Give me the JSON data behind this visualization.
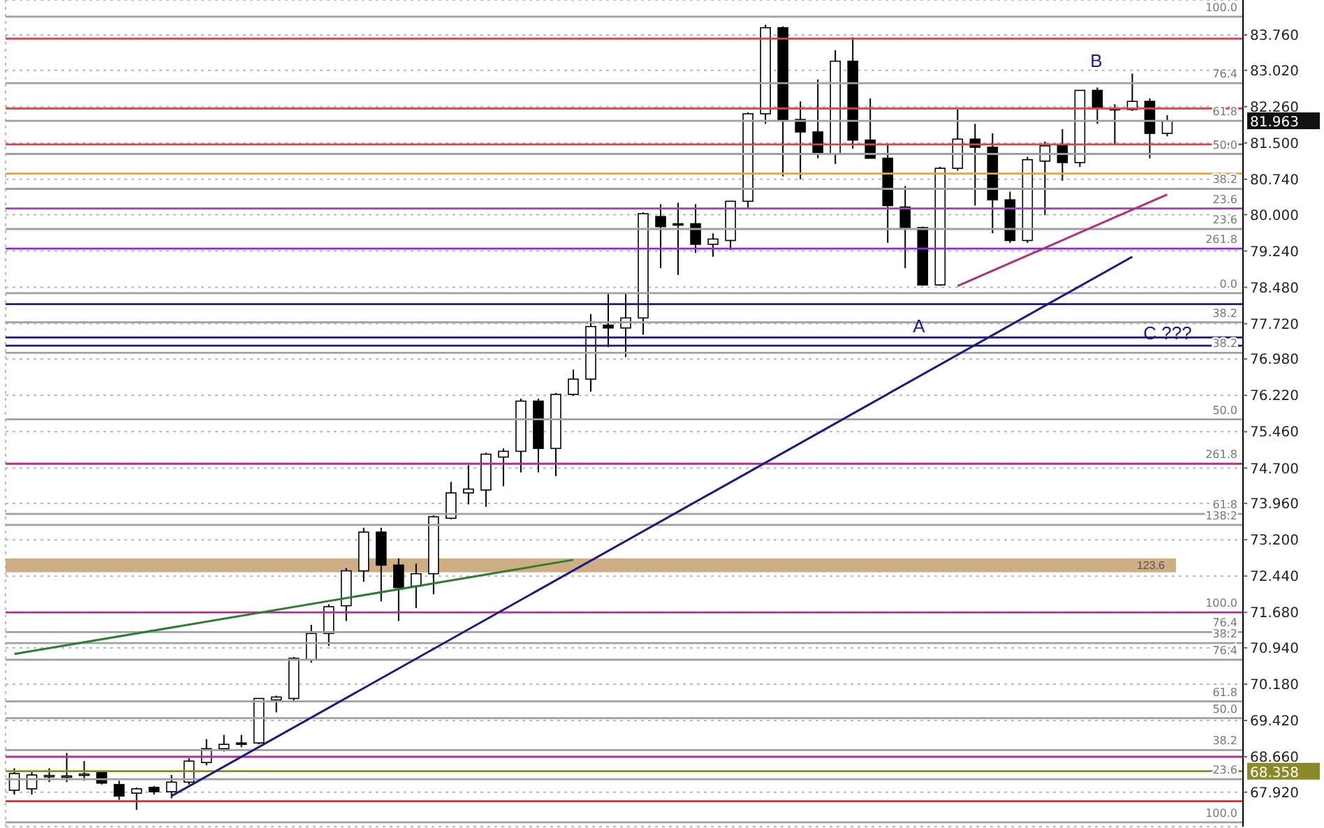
{
  "chart_data": {
    "type": "candlestick",
    "color": "#000000",
    "grid": true,
    "tick_labels": "y",
    "categories": [
      null,
      null,
      null,
      null,
      null,
      null,
      null,
      null,
      null,
      null,
      null,
      null,
      null,
      null,
      null,
      null,
      null,
      null,
      null,
      null,
      null,
      null,
      null,
      null,
      null,
      null,
      null,
      null,
      null,
      null,
      null,
      null,
      null,
      null,
      null,
      null,
      null,
      null,
      null,
      null,
      null,
      null,
      null,
      null,
      null,
      null,
      null,
      null,
      null,
      null,
      null,
      null,
      null,
      null,
      null,
      null,
      null,
      null,
      null,
      null,
      null,
      null,
      null,
      null,
      null,
      null,
      null
    ],
    "ohlc": [
      [
        67.96,
        68.42,
        67.87,
        68.31
      ],
      [
        67.99,
        68.37,
        67.87,
        68.28
      ],
      [
        68.25,
        68.42,
        68.13,
        68.27
      ],
      [
        68.25,
        68.74,
        68.13,
        68.26
      ],
      [
        68.28,
        68.57,
        68.16,
        68.3
      ],
      [
        68.34,
        68.37,
        68.08,
        68.11
      ],
      [
        68.08,
        68.16,
        67.76,
        67.84
      ],
      [
        67.9,
        68.02,
        67.55,
        67.99
      ],
      [
        68.02,
        68.05,
        67.87,
        67.93
      ],
      [
        67.93,
        68.28,
        67.79,
        68.13
      ],
      [
        68.13,
        68.63,
        68.08,
        68.57
      ],
      [
        68.54,
        69.03,
        68.48,
        68.83
      ],
      [
        68.83,
        69.12,
        68.77,
        68.92
      ],
      [
        68.95,
        69.12,
        68.86,
        68.93
      ],
      [
        68.95,
        69.88,
        68.92,
        69.88
      ],
      [
        69.85,
        69.94,
        69.59,
        69.91
      ],
      [
        69.88,
        70.75,
        69.82,
        70.72
      ],
      [
        70.69,
        71.42,
        70.63,
        71.24
      ],
      [
        71.24,
        71.85,
        70.98,
        71.8
      ],
      [
        71.82,
        72.61,
        71.5,
        72.55
      ],
      [
        72.55,
        73.45,
        72.32,
        73.36
      ],
      [
        73.36,
        73.45,
        71.91,
        72.67
      ],
      [
        72.67,
        72.81,
        71.5,
        72.2
      ],
      [
        72.23,
        72.7,
        71.77,
        72.49
      ],
      [
        72.49,
        73.71,
        72.06,
        73.68
      ],
      [
        73.65,
        74.41,
        73.63,
        74.18
      ],
      [
        74.18,
        74.76,
        73.94,
        74.26
      ],
      [
        74.24,
        75.02,
        73.89,
        74.99
      ],
      [
        74.93,
        75.11,
        74.32,
        75.05
      ],
      [
        75.05,
        76.15,
        74.61,
        76.1
      ],
      [
        76.1,
        76.15,
        74.61,
        75.11
      ],
      [
        75.11,
        76.27,
        74.53,
        76.24
      ],
      [
        76.24,
        76.76,
        76.21,
        76.56
      ],
      [
        76.56,
        77.92,
        76.3,
        77.66
      ],
      [
        77.69,
        78.36,
        77.23,
        77.63
      ],
      [
        77.63,
        78.36,
        77.02,
        77.84
      ],
      [
        77.84,
        80.05,
        77.49,
        80.02
      ],
      [
        79.96,
        80.22,
        78.88,
        79.75
      ],
      [
        79.81,
        80.25,
        78.74,
        79.8
      ],
      [
        79.81,
        80.22,
        79.2,
        79.38
      ],
      [
        79.38,
        79.61,
        79.12,
        79.49
      ],
      [
        79.46,
        80.28,
        79.26,
        80.28
      ],
      [
        80.28,
        82.14,
        80.13,
        82.11
      ],
      [
        82.11,
        83.97,
        81.9,
        83.91
      ],
      [
        83.91,
        83.94,
        80.8,
        81.96
      ],
      [
        81.99,
        82.37,
        80.74,
        81.73
      ],
      [
        81.73,
        82.83,
        81.18,
        81.27
      ],
      [
        81.27,
        83.44,
        81.06,
        83.21
      ],
      [
        83.21,
        83.71,
        81.38,
        81.56
      ],
      [
        81.56,
        82.43,
        81.18,
        81.18
      ],
      [
        81.18,
        81.47,
        79.41,
        80.19
      ],
      [
        80.16,
        80.6,
        78.88,
        79.73
      ],
      [
        79.73,
        79.75,
        78.51,
        78.53
      ],
      [
        78.53,
        81.0,
        78.51,
        80.97
      ],
      [
        80.97,
        82.2,
        80.92,
        81.58
      ],
      [
        81.58,
        81.9,
        80.19,
        81.41
      ],
      [
        81.41,
        81.7,
        79.61,
        80.31
      ],
      [
        80.31,
        80.48,
        79.41,
        79.46
      ],
      [
        79.46,
        81.21,
        79.41,
        81.15
      ],
      [
        81.12,
        81.53,
        79.99,
        81.44
      ],
      [
        81.47,
        81.79,
        80.71,
        81.09
      ],
      [
        81.09,
        82.6,
        81.0,
        82.6
      ],
      [
        82.6,
        82.66,
        81.9,
        82.22
      ],
      [
        82.22,
        82.31,
        81.47,
        82.21
      ],
      [
        82.2,
        82.95,
        82.17,
        82.37
      ],
      [
        82.37,
        82.43,
        81.18,
        81.7
      ],
      [
        81.7,
        82.08,
        81.64,
        81.96
      ]
    ],
    "series": [
      {
        "type": "line",
        "color": "#1a1a80",
        "values": [
          null,
          null,
          null,
          null,
          null,
          null,
          null,
          null,
          null,
          67.84,
          null,
          null,
          null,
          null,
          null,
          null,
          null,
          null,
          null,
          null,
          null,
          null,
          null,
          null,
          null,
          null,
          null,
          null,
          null,
          null,
          null,
          null,
          null,
          null,
          null,
          null,
          null,
          null,
          null,
          null,
          null,
          null,
          null,
          null,
          null,
          null,
          null,
          null,
          null,
          null,
          null,
          null,
          null,
          null,
          null,
          null,
          null,
          null,
          null,
          null,
          null,
          null,
          null,
          null,
          79.12,
          null,
          null
        ]
      },
      {
        "type": "line",
        "color": "#2e7d32",
        "values": [
          70.81,
          null,
          null,
          null,
          null,
          null,
          null,
          null,
          null,
          null,
          null,
          null,
          null,
          null,
          null,
          null,
          null,
          null,
          null,
          null,
          null,
          null,
          null,
          null,
          null,
          null,
          null,
          null,
          null,
          null,
          null,
          null,
          72.78,
          null,
          null,
          null,
          null,
          null,
          null,
          null,
          null,
          null,
          null,
          null,
          null,
          null,
          null,
          null,
          null,
          null,
          null,
          null,
          null,
          null,
          null,
          null,
          null,
          null,
          null,
          null,
          null,
          null,
          null,
          null,
          null,
          null,
          null
        ]
      },
      {
        "type": "line",
        "color": "#b0307a",
        "values": [
          null,
          null,
          null,
          null,
          null,
          null,
          null,
          null,
          null,
          null,
          null,
          null,
          null,
          null,
          null,
          null,
          null,
          null,
          null,
          null,
          null,
          null,
          null,
          null,
          null,
          null,
          null,
          null,
          null,
          null,
          null,
          null,
          null,
          null,
          null,
          null,
          null,
          null,
          null,
          null,
          null,
          null,
          null,
          null,
          null,
          null,
          null,
          null,
          null,
          null,
          null,
          null,
          null,
          null,
          78.51,
          null,
          null,
          null,
          null,
          null,
          null,
          null,
          null,
          null,
          null,
          null,
          80.42
        ]
      }
    ],
    "ylim": [
      67.2,
      84.49
    ],
    "yticks": [
      {
        "value": 83.76,
        "label": "83.760"
      },
      {
        "value": 83.02,
        "label": "83.020"
      },
      {
        "value": 82.26,
        "label": "82.260"
      },
      {
        "value": 81.5,
        "label": "81.500"
      },
      {
        "value": 80.74,
        "label": "80.740"
      },
      {
        "value": 80,
        "label": "80.000"
      },
      {
        "value": 79.24,
        "label": "79.240"
      },
      {
        "value": 78.48,
        "label": "78.480"
      },
      {
        "value": 77.72,
        "label": "77.720"
      },
      {
        "value": 76.98,
        "label": "76.980"
      },
      {
        "value": 76.22,
        "label": "76.220"
      },
      {
        "value": 75.46,
        "label": "75.460"
      },
      {
        "value": 74.7,
        "label": "74.700"
      },
      {
        "value": 73.96,
        "label": "73.960"
      },
      {
        "value": 73.2,
        "label": "73.200"
      },
      {
        "value": 72.44,
        "label": "72.440"
      },
      {
        "value": 71.68,
        "label": "71.680"
      },
      {
        "value": 70.94,
        "label": "70.940"
      },
      {
        "value": 70.18,
        "label": "70.180"
      },
      {
        "value": 69.42,
        "label": "69.420"
      },
      {
        "value": 68.66,
        "label": "68.660"
      },
      {
        "value": 67.92,
        "label": "67.920"
      }
    ],
    "ref_lines": [
      {
        "axis": "y",
        "value": 84.14,
        "color": "#a0a0a0"
      },
      {
        "axis": "y",
        "value": 83.68,
        "color": "#e04040"
      },
      {
        "axis": "y",
        "value": 82.75,
        "color": "#a0a0a0"
      },
      {
        "axis": "y",
        "value": 82.22,
        "color": "#e04040"
      },
      {
        "axis": "y",
        "value": 81.963,
        "label": "81.963",
        "color": "#a0a0a0"
      },
      {
        "axis": "y",
        "value": 81.47,
        "color": "#e04040"
      },
      {
        "axis": "y",
        "value": 81.27,
        "color": "#a0a0a0"
      },
      {
        "axis": "y",
        "value": 80.86,
        "color": "#f0a040"
      },
      {
        "axis": "y",
        "value": 80.54,
        "color": "#a0a0a0"
      },
      {
        "axis": "y",
        "value": 80.13,
        "color": "#a040c0"
      },
      {
        "axis": "y",
        "value": 79.7,
        "color": "#a0a0a0"
      },
      {
        "axis": "y",
        "value": 79.29,
        "color": "#8a2be2"
      },
      {
        "axis": "y",
        "value": 78.36,
        "color": "#a0a0a0"
      },
      {
        "axis": "y",
        "value": 78.13,
        "color": "#1a1a80"
      },
      {
        "axis": "y",
        "value": 77.75,
        "color": "#a0a0a0"
      },
      {
        "axis": "y",
        "value": 77.43,
        "color": "#1a1a80"
      },
      {
        "axis": "y",
        "value": 77.26,
        "color": "#1a1a80"
      },
      {
        "axis": "y",
        "value": 77.11,
        "color": "#a0a0a0"
      },
      {
        "axis": "y",
        "value": 75.72,
        "color": "#a0a0a0"
      },
      {
        "axis": "y",
        "value": 74.79,
        "color": "#b03090"
      },
      {
        "axis": "y",
        "value": 73.74,
        "color": "#a0a0a0"
      },
      {
        "axis": "y",
        "value": 73.51,
        "color": "#a0a0a0"
      },
      {
        "axis": "y",
        "value": 71.68,
        "color": "#b03090"
      },
      {
        "axis": "y",
        "value": 71.27,
        "color": "#a0a0a0"
      },
      {
        "axis": "y",
        "value": 71.04,
        "color": "#a0a0a0"
      },
      {
        "axis": "y",
        "value": 70.69,
        "color": "#a0a0a0"
      },
      {
        "axis": "y",
        "value": 69.82,
        "color": "#a0a0a0"
      },
      {
        "axis": "y",
        "value": 69.47,
        "color": "#a0a0a0"
      },
      {
        "axis": "y",
        "value": 68.8,
        "color": "#a0a0a0"
      },
      {
        "axis": "y",
        "value": 68.66,
        "color": "#b03090"
      },
      {
        "axis": "y",
        "value": 68.358,
        "label": "68.358",
        "color": "#8a8a2a"
      },
      {
        "axis": "y",
        "value": 68.19,
        "color": "#a0a0a0"
      },
      {
        "axis": "y",
        "value": 67.73,
        "color": "#d03030"
      },
      {
        "axis": "y",
        "value": 67.29,
        "color": "#a0a0a0"
      }
    ],
    "bands": [
      {
        "axis": "y",
        "from": 72.52,
        "to": 72.81,
        "label": "123.6",
        "color": "#c8a070"
      }
    ],
    "annotations": [
      "A",
      "B",
      "C ???",
      {
        "text": "100.0",
        "y": 84.14
      },
      {
        "text": "76.4",
        "y": 82.75
      },
      {
        "text": "61.8",
        "y": 81.963
      },
      {
        "text": "50.0",
        "y": 81.27
      },
      {
        "text": "38.2",
        "y": 80.54
      },
      {
        "text": "23.6",
        "y": 80.13
      },
      {
        "text": "23.6",
        "y": 79.7
      },
      {
        "text": "261.8",
        "y": 79.29
      },
      {
        "text": "0.0",
        "y": 78.36
      },
      {
        "text": "38.2",
        "y": 77.75
      },
      {
        "text": "38.2",
        "y": 77.11
      },
      {
        "text": "50.0",
        "y": 75.72
      },
      {
        "text": "261.8",
        "y": 74.79
      },
      {
        "text": "61.8",
        "y": 73.74
      },
      {
        "text": "138.2",
        "y": 73.51
      },
      {
        "text": "100.0",
        "y": 71.68
      },
      {
        "text": "76.4",
        "y": 71.27
      },
      {
        "text": "38.2",
        "y": 71.04
      },
      {
        "text": "76.4",
        "y": 70.69
      },
      {
        "text": "61.8",
        "y": 69.82
      },
      {
        "text": "50.0",
        "y": 69.47
      },
      {
        "text": "38.2",
        "y": 68.8
      },
      {
        "text": "23.6",
        "y": 68.19
      },
      {
        "text": "100.0",
        "y": 67.29
      }
    ]
  }
}
